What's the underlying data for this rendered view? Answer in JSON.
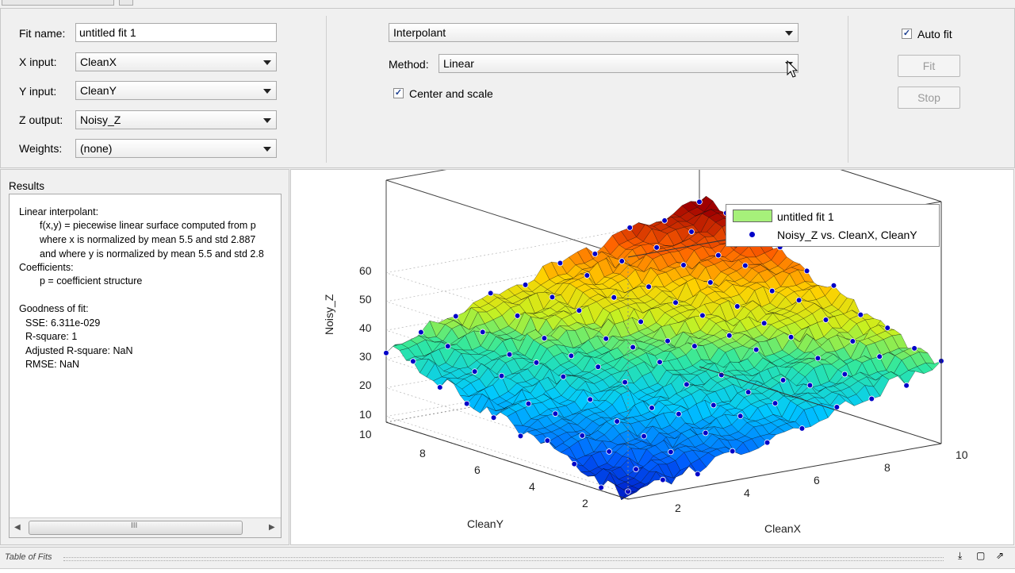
{
  "form": {
    "fit_name_label": "Fit name:",
    "fit_name_value": "untitled fit 1",
    "x_input_label": "X input:",
    "x_input_value": "CleanX",
    "y_input_label": "Y input:",
    "y_input_value": "CleanY",
    "z_output_label": "Z output:",
    "z_output_value": "Noisy_Z",
    "weights_label": "Weights:",
    "weights_value": "(none)"
  },
  "fit_type": {
    "type_value": "Interpolant",
    "method_label": "Method:",
    "method_value": "Linear",
    "center_scale_label": "Center and scale",
    "center_scale_checked": true
  },
  "actions": {
    "auto_fit_label": "Auto fit",
    "auto_fit_checked": true,
    "fit_button": "Fit",
    "stop_button": "Stop"
  },
  "results": {
    "title": "Results",
    "lines": [
      "Linear interpolant:",
      "f(x,y) = piecewise linear surface computed from p",
      "where x is normalized by mean 5.5 and std 2.887",
      "and where y is normalized by mean 5.5 and std 2.8",
      "Coefficients:",
      "p = coefficient structure",
      "Goodness of fit:",
      "SSE: 6.311e-029",
      "R-square: 1",
      "Adjusted R-square: NaN",
      "RMSE: NaN"
    ]
  },
  "plot": {
    "zlabel": "Noisy_Z",
    "xlabel": "CleanX",
    "ylabel": "CleanY",
    "z_ticks": [
      "60",
      "50",
      "40",
      "30",
      "20",
      "10",
      "10"
    ],
    "y_ticks": [
      "8",
      "6",
      "4",
      "2"
    ],
    "x_ticks": [
      "2",
      "4",
      "6",
      "8",
      "10"
    ],
    "legend": {
      "surface_entry": "untitled fit 1",
      "points_entry": "Noisy_Z vs. CleanX, CleanY",
      "surface_color": "#a6f07a",
      "points_color": "#0000c8"
    }
  },
  "table_of_fits": {
    "title": "Table of Fits"
  }
}
